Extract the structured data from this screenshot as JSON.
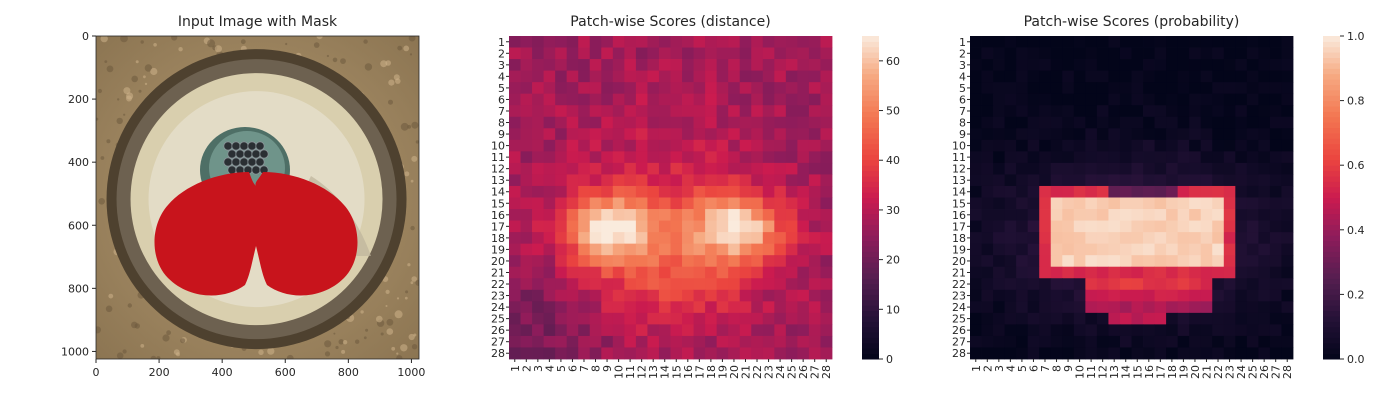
{
  "chart_data": [
    {
      "type": "image",
      "title": "Input Image with Mask",
      "xlim": [
        0,
        1024
      ],
      "ylim": [
        1024,
        0
      ],
      "xticks": [
        0,
        200,
        400,
        600,
        800,
        1000
      ],
      "yticks": [
        0,
        200,
        400,
        600,
        800,
        1000
      ],
      "content": "circular metal terminal photo with a red segmentation mask over two lobes and a dark cylindrical insert above them"
    },
    {
      "type": "heatmap",
      "title": "Patch-wise Scores (distance)",
      "grid": [
        28,
        28
      ],
      "row_labels": [
        "1",
        "2",
        "3",
        "4",
        "5",
        "6",
        "7",
        "8",
        "9",
        "10",
        "11",
        "12",
        "13",
        "14",
        "15",
        "16",
        "17",
        "18",
        "19",
        "20",
        "21",
        "22",
        "23",
        "24",
        "25",
        "26",
        "27",
        "28"
      ],
      "col_labels": [
        "1",
        "2",
        "3",
        "4",
        "5",
        "6",
        "7",
        "8",
        "9",
        "10",
        "11",
        "12",
        "13",
        "14",
        "15",
        "16",
        "17",
        "18",
        "19",
        "20",
        "21",
        "22",
        "23",
        "24",
        "25",
        "26",
        "27",
        "28"
      ],
      "colorbar": {
        "range": [
          0,
          65
        ],
        "ticks": [
          0,
          10,
          20,
          30,
          40,
          50,
          60
        ],
        "colormap": "rocket"
      }
    },
    {
      "type": "heatmap",
      "title": "Patch-wise Scores (probability)",
      "grid": [
        28,
        28
      ],
      "row_labels": [
        "1",
        "2",
        "3",
        "4",
        "5",
        "6",
        "7",
        "8",
        "9",
        "10",
        "11",
        "12",
        "13",
        "14",
        "15",
        "16",
        "17",
        "18",
        "19",
        "20",
        "21",
        "22",
        "23",
        "24",
        "25",
        "26",
        "27",
        "28"
      ],
      "col_labels": [
        "1",
        "2",
        "3",
        "4",
        "5",
        "6",
        "7",
        "8",
        "9",
        "10",
        "11",
        "12",
        "13",
        "14",
        "15",
        "16",
        "17",
        "18",
        "19",
        "20",
        "21",
        "22",
        "23",
        "24",
        "25",
        "26",
        "27",
        "28"
      ],
      "colorbar": {
        "range": [
          0,
          1
        ],
        "ticks": [
          "0.0",
          "0.2",
          "0.4",
          "0.6",
          "0.8",
          "1.0"
        ],
        "colormap": "rocket"
      }
    }
  ]
}
